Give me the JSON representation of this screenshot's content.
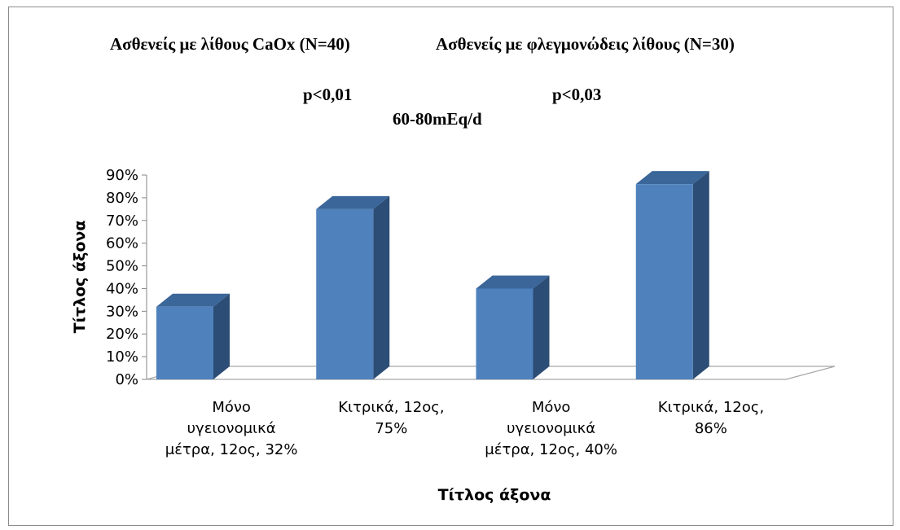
{
  "chart_data": {
    "type": "bar",
    "style": "3d-column",
    "title_lines": [
      [
        "Ασθενείς με λίθους CaOx (N=40)",
        "Ασθενείς με φλεγμονώδεις λίθους (N=30)"
      ],
      [
        "p<0,01",
        "p<0,03"
      ],
      [
        "60-80mEq/d"
      ]
    ],
    "categories": [
      [
        "Μόνο",
        "υγειονομικά",
        "μέτρα, 12ος, 32%"
      ],
      [
        "Κιτρικά, 12ος,",
        "75%"
      ],
      [
        "Μόνο",
        "υγειονομικά",
        "μέτρα, 12ος, 40%"
      ],
      [
        "Κιτρικά, 12ος,",
        "86%"
      ]
    ],
    "values": [
      0.32,
      0.75,
      0.4,
      0.86
    ],
    "xlabel": "Τίτλος άξονα",
    "ylabel": "Τίτλος άξονα",
    "ylim": [
      0,
      0.9
    ],
    "yticks": [
      "0%",
      "10%",
      "20%",
      "30%",
      "40%",
      "50%",
      "60%",
      "70%",
      "80%",
      "90%"
    ],
    "grid": false,
    "legend": "none",
    "colors": {
      "bar_front": "#4f81bd",
      "bar_side": "#2c4d75",
      "bar_top": "#3a6699",
      "floor_stroke": "#a6a6a6"
    }
  }
}
